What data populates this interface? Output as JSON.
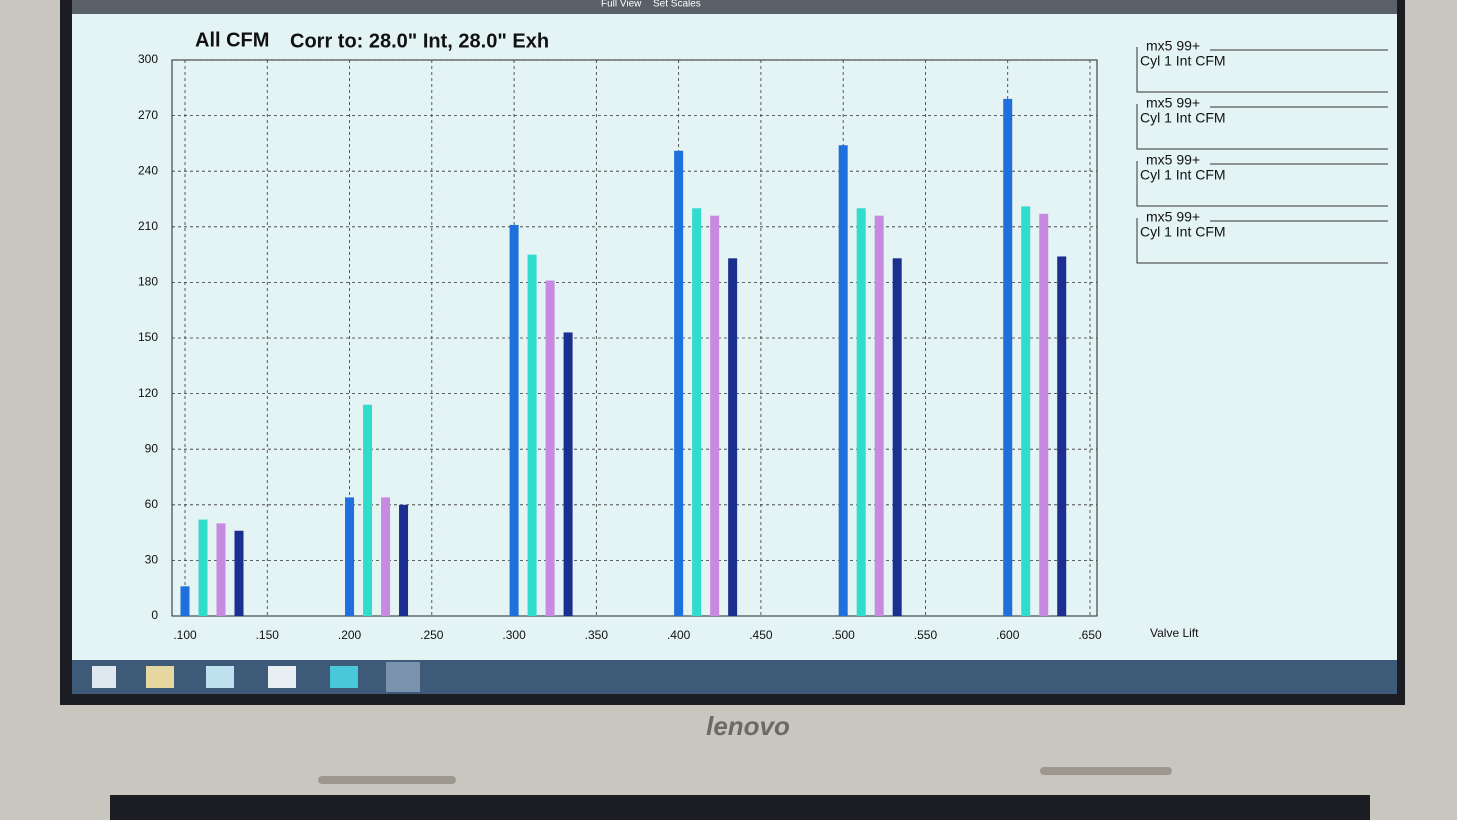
{
  "toolbar": [
    "Full View",
    "Set Scales"
  ],
  "brand": "lenovo",
  "chart_data": {
    "type": "bar",
    "title": "All CFM",
    "subtitle": "Corr to: 28.0\" Int, 28.0\" Exh",
    "x_label": "Valve Lift",
    "x": [
      0.1,
      0.2,
      0.3,
      0.4,
      0.5,
      0.6
    ],
    "series": [
      {
        "name": "mx5 99+",
        "label": "Cyl 1 Int CFM",
        "color": "#1f6fdc",
        "values": [
          16,
          64,
          211,
          251,
          254,
          279
        ]
      },
      {
        "name": "mx5 99+",
        "label": "Cyl 1 Int CFM",
        "color": "#30dccb",
        "values": [
          52,
          114,
          195,
          220,
          220,
          221
        ]
      },
      {
        "name": "mx5 99+",
        "label": "Cyl 1 Int CFM",
        "color": "#c88ae0",
        "values": [
          50,
          64,
          181,
          216,
          216,
          217
        ]
      },
      {
        "name": "mx5 99+",
        "label": "Cyl 1 Int CFM",
        "color": "#1b2f90",
        "values": [
          46,
          60,
          153,
          193,
          193,
          194
        ]
      }
    ],
    "xlim": [
      0.1,
      0.65
    ],
    "xticks": [
      {
        "value": 0.1,
        "label": ".100"
      },
      {
        "value": 0.15,
        "label": ".150"
      },
      {
        "value": 0.2,
        "label": ".200"
      },
      {
        "value": 0.25,
        "label": ".250"
      },
      {
        "value": 0.3,
        "label": ".300"
      },
      {
        "value": 0.35,
        "label": ".350"
      },
      {
        "value": 0.4,
        "label": ".400"
      },
      {
        "value": 0.45,
        "label": ".450"
      },
      {
        "value": 0.5,
        "label": ".500"
      },
      {
        "value": 0.55,
        "label": ".550"
      },
      {
        "value": 0.6,
        "label": ".600"
      },
      {
        "value": 0.65,
        "label": ".650"
      }
    ],
    "ylim": [
      0,
      300
    ],
    "yticks": [
      0,
      30,
      60,
      90,
      120,
      150,
      180,
      210,
      240,
      270,
      300
    ],
    "grid": true
  }
}
